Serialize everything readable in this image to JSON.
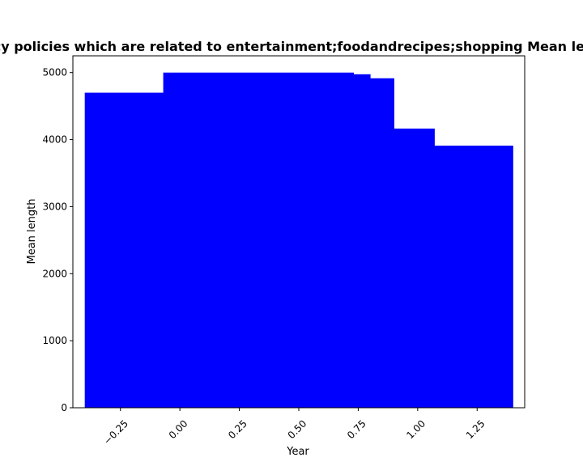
{
  "chart_data": {
    "type": "bar",
    "title": "Mean length of privacy policies which are related to entertainment;foodandrecipes;shopping Mean length in privacy policies",
    "xlabel": "Year",
    "ylabel": "Mean length",
    "xlim": [
      -0.45,
      1.45
    ],
    "ylim": [
      0,
      5250
    ],
    "color": "#0000ff",
    "bars": [
      {
        "x_start": -0.4,
        "x_end": -0.07,
        "value": 4700
      },
      {
        "x_start": -0.07,
        "x_end": 0.73,
        "value": 5000
      },
      {
        "x_start": 0.73,
        "x_end": 0.8,
        "value": 4975
      },
      {
        "x_start": 0.8,
        "x_end": 0.9,
        "value": 4915
      },
      {
        "x_start": 0.9,
        "x_end": 1.07,
        "value": 4165
      },
      {
        "x_start": 1.07,
        "x_end": 1.4,
        "value": 3910
      }
    ],
    "xticks": [
      -0.25,
      0.0,
      0.25,
      0.5,
      0.75,
      1.0,
      1.25
    ],
    "xtick_labels": [
      "−0.25",
      "0.00",
      "0.25",
      "0.50",
      "0.75",
      "1.00",
      "1.25"
    ],
    "yticks": [
      0,
      1000,
      2000,
      3000,
      4000,
      5000
    ],
    "ytick_labels": [
      "0",
      "1000",
      "2000",
      "3000",
      "4000",
      "5000"
    ],
    "grid": false,
    "legend": false
  }
}
